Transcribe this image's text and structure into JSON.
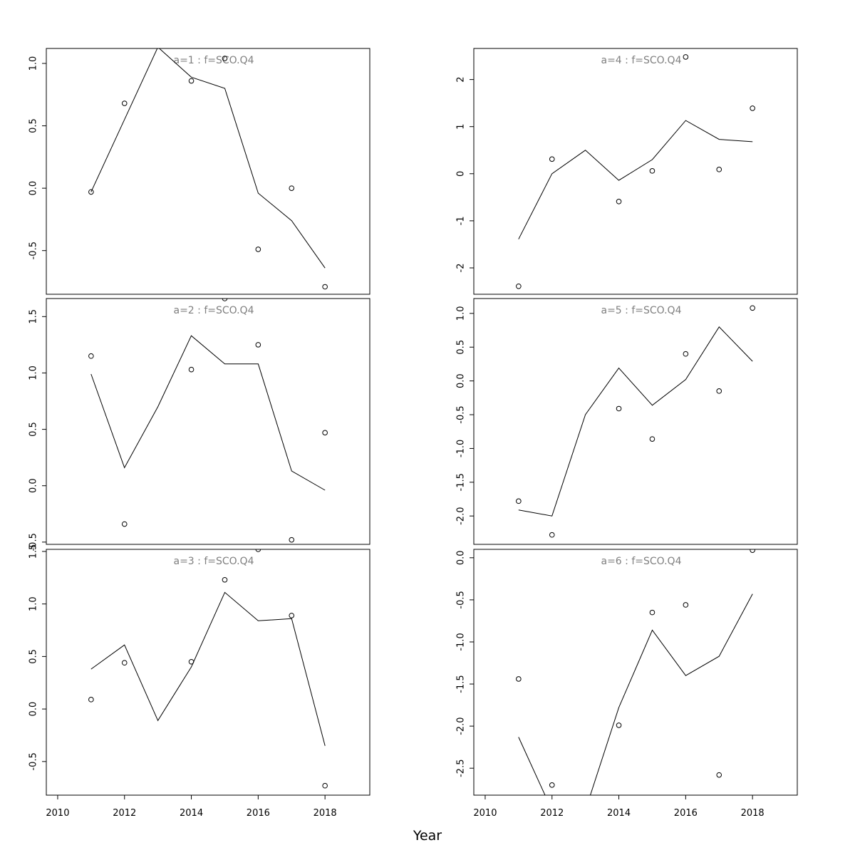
{
  "chart_data": {
    "type": "line",
    "xlabel": "Year",
    "x_tick_labels": [
      "2010",
      "2012",
      "2014",
      "2016",
      "2018"
    ],
    "x": [
      2011,
      2012,
      2013,
      2014,
      2015,
      2016,
      2017,
      2018
    ],
    "panels": [
      {
        "title": "a=1 : f=SCO.Q4",
        "ylim": [
          -0.85,
          1.12
        ],
        "yticks": [
          -0.5,
          0.0,
          0.5,
          1.0
        ],
        "ytick_labels": [
          "-0.5",
          "0.0",
          "0.5",
          "1.0"
        ],
        "observed": [
          -0.03,
          0.68,
          null,
          0.86,
          1.04,
          -0.49,
          0.0,
          -0.79
        ],
        "fitted": [
          -0.03,
          0.55,
          1.13,
          0.89,
          0.8,
          -0.04,
          -0.26,
          -0.64
        ]
      },
      {
        "title": "a=2 : f=SCO.Q4",
        "ylim": [
          -0.52,
          1.66
        ],
        "yticks": [
          -0.5,
          0.0,
          0.5,
          1.0,
          1.5
        ],
        "ytick_labels": [
          "-0.5",
          "0.0",
          "0.5",
          "1.0",
          "1.5"
        ],
        "observed": [
          1.15,
          -0.34,
          null,
          1.03,
          1.66,
          1.25,
          -0.48,
          0.47
        ],
        "fitted": [
          0.99,
          0.16,
          0.7,
          1.33,
          1.08,
          1.08,
          0.13,
          -0.04
        ]
      },
      {
        "title": "a=3 : f=SCO.Q4",
        "ylim": [
          -0.82,
          1.52
        ],
        "yticks": [
          -0.5,
          0.0,
          0.5,
          1.0,
          1.5
        ],
        "ytick_labels": [
          "-0.5",
          "0.0",
          "0.5",
          "1.0",
          "1.5"
        ],
        "observed": [
          0.09,
          0.44,
          null,
          0.45,
          1.23,
          1.52,
          0.89,
          -0.73
        ],
        "fitted": [
          0.38,
          0.61,
          -0.11,
          0.4,
          1.11,
          0.84,
          0.86,
          -0.35
        ]
      },
      {
        "title": "a=4 : f=SCO.Q4",
        "ylim": [
          -2.56,
          2.66
        ],
        "yticks": [
          -2,
          -1,
          0,
          1,
          2
        ],
        "ytick_labels": [
          "-2",
          "-1",
          "0",
          "1",
          "2"
        ],
        "observed": [
          -2.39,
          0.31,
          null,
          -0.59,
          0.06,
          2.48,
          0.09,
          1.39
        ],
        "fitted": [
          -1.39,
          0.0,
          0.5,
          -0.14,
          0.3,
          1.13,
          0.73,
          0.68
        ]
      },
      {
        "title": "a=5 : f=SCO.Q4",
        "ylim": [
          -2.42,
          1.22
        ],
        "yticks": [
          -2.0,
          -1.5,
          -1.0,
          -0.5,
          0.0,
          0.5,
          1.0
        ],
        "ytick_labels": [
          "-2.0",
          "-1.5",
          "-1.0",
          "-0.5",
          "0.0",
          "0.5",
          "1.0"
        ],
        "observed": [
          -1.78,
          -2.28,
          null,
          -0.41,
          -0.86,
          0.4,
          -0.15,
          1.08
        ],
        "fitted": [
          -1.91,
          -2.0,
          -0.5,
          0.19,
          -0.36,
          0.02,
          0.8,
          0.29
        ]
      },
      {
        "title": "a=6 : f=SCO.Q4",
        "ylim": [
          -2.82,
          0.1
        ],
        "yticks": [
          -2.5,
          -2.0,
          -1.5,
          -1.0,
          -0.5,
          0.0
        ],
        "ytick_labels": [
          "-2.5",
          "-2.0",
          "-1.5",
          "-1.0",
          "-0.5",
          "0.0"
        ],
        "observed": [
          -1.44,
          -2.7,
          null,
          -1.99,
          -0.65,
          -0.56,
          -2.58,
          0.09
        ],
        "fitted": [
          -2.13,
          -3.0,
          -3.0,
          -1.78,
          -0.86,
          -1.4,
          -1.17,
          -0.43
        ]
      }
    ]
  }
}
